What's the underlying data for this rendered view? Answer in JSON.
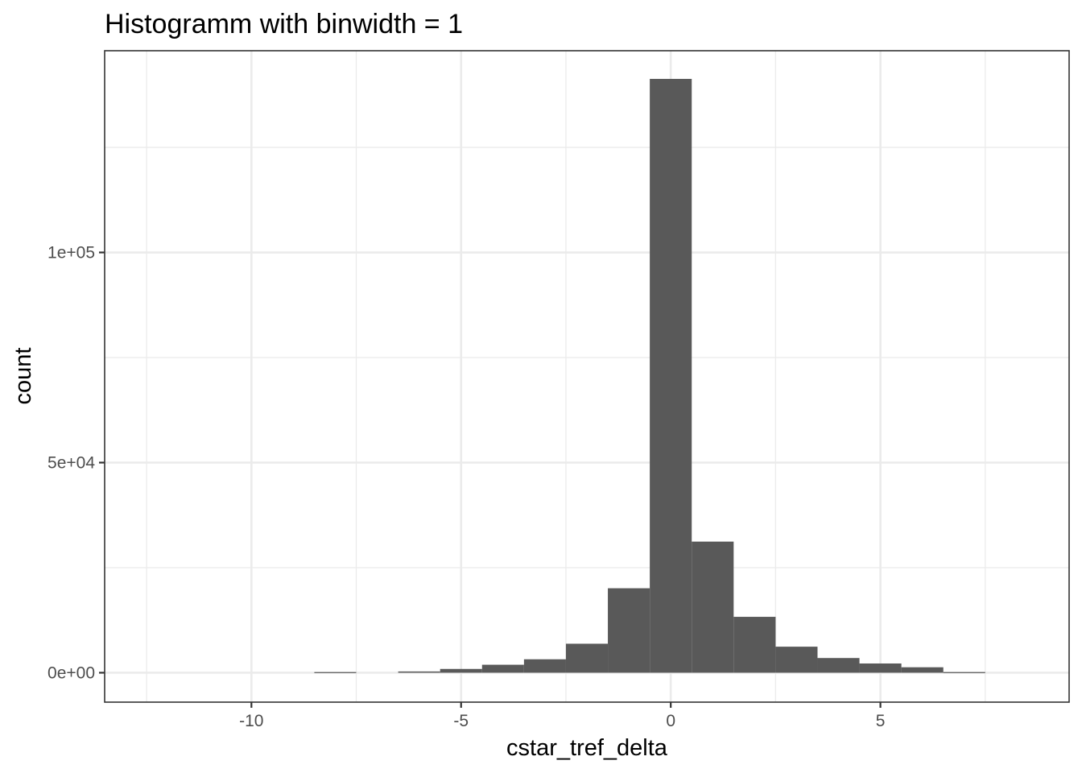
{
  "chart_data": {
    "type": "bar",
    "title": "Histogramm with binwidth = 1",
    "xlabel": "cstar_tref_delta",
    "ylabel": "count",
    "xlim": [
      -13.5,
      9.5
    ],
    "ylim": [
      -7000,
      148000
    ],
    "x_ticks": [
      -10,
      -5,
      0,
      5
    ],
    "x_tick_labels": [
      "-10",
      "-5",
      "0",
      "5"
    ],
    "x_minor_ticks": [
      -12.5,
      -7.5,
      -2.5,
      2.5,
      7.5
    ],
    "y_ticks": [
      0,
      50000,
      100000
    ],
    "y_tick_labels": [
      "0e+00",
      "5e+04",
      "1e+05"
    ],
    "y_minor_ticks": [
      25000,
      75000,
      125000
    ],
    "binwidth": 1,
    "bins": [
      {
        "x": -8,
        "count": 150
      },
      {
        "x": -6,
        "count": 300
      },
      {
        "x": -5,
        "count": 900
      },
      {
        "x": -4,
        "count": 1900
      },
      {
        "x": -3,
        "count": 3200
      },
      {
        "x": -2,
        "count": 6900
      },
      {
        "x": -1,
        "count": 20100
      },
      {
        "x": 0,
        "count": 141300
      },
      {
        "x": 1,
        "count": 31200
      },
      {
        "x": 2,
        "count": 13300
      },
      {
        "x": 3,
        "count": 6200
      },
      {
        "x": 4,
        "count": 3500
      },
      {
        "x": 5,
        "count": 2200
      },
      {
        "x": 6,
        "count": 1300
      },
      {
        "x": 7,
        "count": 150
      }
    ],
    "bar_color": "#595959",
    "grid": true
  }
}
